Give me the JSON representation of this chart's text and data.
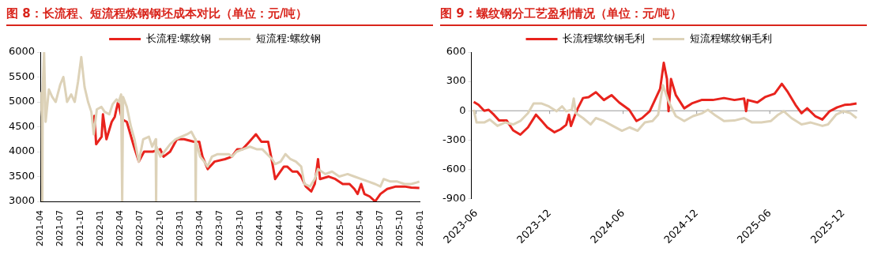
{
  "chart_data": [
    {
      "type": "line",
      "title": "图 8：长流程、短流程炼钢钢坯成本对比（单位：元/吨）",
      "legend": "top",
      "grid": false,
      "marker": "none",
      "line_style": "solid",
      "xlim": [
        "2021-04",
        "2026-01"
      ],
      "xticks": [
        "2021-04",
        "2021-07",
        "2021-10",
        "2022-01",
        "2022-04",
        "2022-07",
        "2022-10",
        "2023-01",
        "2023-04",
        "2023-07",
        "2023-10",
        "2024-01",
        "2024-04",
        "2024-07",
        "2024-10",
        "2025-01",
        "2025-04",
        "2025-07",
        "2025-10",
        "2026-01"
      ],
      "ylim": [
        3000,
        6000
      ],
      "yticks": [
        3000,
        3500,
        4000,
        4500,
        5000,
        5500,
        6000
      ],
      "series": [
        {
          "name": "长流程:螺纹钢",
          "color": "#e8231d",
          "x": [
            "2021-12-01",
            "2021-12-04",
            "2021-12-12",
            "2022-01-06",
            "2022-01-12",
            "2022-01-28",
            "2022-02-21",
            "2022-03-07",
            "2022-03-22",
            "2022-04-09",
            "2022-05-01",
            "2022-06-03",
            "2022-06-25",
            "2022-07-19",
            "2022-08-28",
            "2022-10-01",
            "2022-10-16",
            "2022-11-15",
            "2022-12-16",
            "2023-01-18",
            "2023-03-04",
            "2023-03-28",
            "2023-04-12",
            "2023-05-06",
            "2023-06-06",
            "2023-07-24",
            "2023-08-24",
            "2023-09-18",
            "2023-10-12",
            "2023-11-12",
            "2023-12-12",
            "2024-01-06",
            "2024-02-06",
            "2024-02-24",
            "2024-03-09",
            "2024-04-18",
            "2024-05-03",
            "2024-05-27",
            "2024-06-18",
            "2024-07-06",
            "2024-07-27",
            "2024-08-21",
            "2024-09-06",
            "2024-09-21",
            "2024-09-30",
            "2024-11-09",
            "2024-12-09",
            "2025-01-12",
            "2025-02-12",
            "2025-03-06",
            "2025-03-21",
            "2025-04-06",
            "2025-04-21",
            "2025-05-15",
            "2025-06-09",
            "2025-07-03",
            "2025-08-03",
            "2025-09-12",
            "2025-10-21",
            "2025-11-21",
            "2025-12-28"
          ],
          "values": [
            4400,
            4720,
            4150,
            4300,
            4750,
            4250,
            4600,
            4700,
            5000,
            4650,
            4600,
            4100,
            3800,
            4000,
            4000,
            4050,
            3900,
            4000,
            4250,
            4250,
            4200,
            4200,
            3900,
            3650,
            3800,
            3850,
            3900,
            4050,
            4050,
            4200,
            4350,
            4200,
            4200,
            3800,
            3450,
            3700,
            3700,
            3600,
            3600,
            3500,
            3300,
            3200,
            3350,
            3850,
            3450,
            3500,
            3450,
            3350,
            3350,
            3250,
            3150,
            3350,
            3150,
            3100,
            3000,
            3150,
            3250,
            3300,
            3300,
            3280,
            3270
          ]
        },
        {
          "name": "短流程:螺纹钢",
          "color": "#ddd2b8",
          "x": [
            "2021-04-01",
            "2021-04-08",
            "2021-04-10",
            "2021-04-12",
            "2021-04-18",
            "2021-04-25",
            "2021-05-10",
            "2021-05-25",
            "2021-06-10",
            "2021-07-01",
            "2021-07-15",
            "2021-08-01",
            "2021-08-20",
            "2021-09-05",
            "2021-09-20",
            "2021-10-05",
            "2021-10-20",
            "2021-11-05",
            "2021-11-20",
            "2021-12-01",
            "2021-12-15",
            "2022-01-05",
            "2022-01-20",
            "2022-02-10",
            "2022-02-25",
            "2022-03-15",
            "2022-03-25",
            "2022-04-05",
            "2022-04-10",
            "2022-04-14",
            "2022-05-01",
            "2022-05-20",
            "2022-06-05",
            "2022-06-25",
            "2022-07-15",
            "2022-08-10",
            "2022-08-25",
            "2022-09-10",
            "2022-09-12",
            "2022-09-14",
            "2022-10-01",
            "2022-10-20",
            "2022-11-15",
            "2022-12-10",
            "2023-01-05",
            "2023-02-01",
            "2023-02-20",
            "2023-03-10",
            "2023-03-12",
            "2023-03-14",
            "2023-04-01",
            "2023-04-20",
            "2023-05-05",
            "2023-05-25",
            "2023-06-20",
            "2023-07-15",
            "2023-08-10",
            "2023-08-25",
            "2023-09-15",
            "2023-10-15",
            "2023-11-15",
            "2023-12-15",
            "2024-01-10",
            "2024-02-24",
            "2024-03-09",
            "2024-04-03",
            "2024-04-25",
            "2024-05-18",
            "2024-06-12",
            "2024-07-06",
            "2024-07-21",
            "2024-08-15",
            "2024-09-06",
            "2024-09-21",
            "2024-10-24",
            "2024-11-24",
            "2024-12-27",
            "2025-02-03",
            "2025-03-06",
            "2025-04-06",
            "2025-05-09",
            "2025-06-09",
            "2025-07-03",
            "2025-07-18",
            "2025-08-18",
            "2025-09-18",
            "2025-10-21",
            "2025-11-21",
            "2025-12-15",
            "2025-12-28"
          ],
          "values": [
            5200,
            4700,
            3000,
            5300,
            6000,
            4600,
            5250,
            5100,
            5000,
            5350,
            5500,
            5000,
            5150,
            5000,
            5400,
            5900,
            5300,
            5000,
            4800,
            4350,
            4850,
            4900,
            4800,
            4750,
            4950,
            5050,
            5000,
            5150,
            3000,
            5100,
            4900,
            4500,
            4250,
            3800,
            4250,
            4300,
            4100,
            4250,
            3000,
            4100,
            3900,
            4000,
            4150,
            4250,
            4300,
            4350,
            4400,
            4250,
            3000,
            4200,
            3900,
            3800,
            3700,
            3900,
            3950,
            3950,
            3950,
            3900,
            4000,
            4050,
            4100,
            4050,
            4050,
            3850,
            3750,
            3800,
            3950,
            3850,
            3800,
            3700,
            3350,
            3300,
            3450,
            3650,
            3550,
            3600,
            3500,
            3550,
            3500,
            3450,
            3400,
            3350,
            3300,
            3450,
            3400,
            3400,
            3350,
            3350,
            3380,
            3400
          ]
        }
      ]
    },
    {
      "type": "line",
      "title": "图 9：螺纹钢分工艺盈利情况（单位：元/吨）",
      "legend": "top",
      "grid": false,
      "marker": "none",
      "line_style": "solid",
      "xlim": [
        "2023-05-20",
        "2026-01-05"
      ],
      "xticks": [
        "2023-06",
        "2023-12",
        "2024-06",
        "2024-12",
        "2025-06",
        "2025-12"
      ],
      "ylim": [
        -900,
        600
      ],
      "yticks": [
        -900,
        -600,
        -300,
        0,
        300,
        600
      ],
      "ref_lines": [
        {
          "axis": "y",
          "value": 0,
          "color": "#999999"
        }
      ],
      "series": [
        {
          "name": "长流程螺纹钢毛利",
          "color": "#e8231d",
          "x": [
            "2023-05-26",
            "2023-06-07",
            "2023-06-21",
            "2023-07-02",
            "2023-07-15",
            "2023-07-28",
            "2023-08-16",
            "2023-09-01",
            "2023-09-19",
            "2023-10-08",
            "2023-10-28",
            "2023-11-10",
            "2023-11-25",
            "2023-12-13",
            "2023-12-28",
            "2024-01-11",
            "2024-01-18",
            "2024-01-23",
            "2024-02-01",
            "2024-02-09",
            "2024-02-22",
            "2024-03-07",
            "2024-03-25",
            "2024-04-14",
            "2024-05-03",
            "2024-05-22",
            "2024-06-16",
            "2024-07-04",
            "2024-07-18",
            "2024-08-06",
            "2024-08-19",
            "2024-09-01",
            "2024-09-10",
            "2024-09-18",
            "2024-09-22",
            "2024-09-28",
            "2024-10-10",
            "2024-10-31",
            "2024-11-19",
            "2024-12-13",
            "2025-01-10",
            "2025-02-07",
            "2025-03-05",
            "2025-03-29",
            "2025-04-03",
            "2025-04-07",
            "2025-05-01",
            "2025-05-20",
            "2025-06-13",
            "2025-07-01",
            "2025-07-16",
            "2025-08-04",
            "2025-08-19",
            "2025-09-02",
            "2025-09-22",
            "2025-10-10",
            "2025-10-28",
            "2025-11-16",
            "2025-12-04",
            "2025-12-19",
            "2026-01-03"
          ],
          "values": [
            90,
            60,
            0,
            10,
            -40,
            -100,
            -100,
            -200,
            -245,
            -170,
            -40,
            -100,
            -170,
            -220,
            -190,
            -145,
            -40,
            -155,
            -55,
            25,
            130,
            140,
            190,
            110,
            160,
            85,
            10,
            -105,
            -75,
            -5,
            110,
            225,
            490,
            325,
            -5,
            325,
            160,
            25,
            75,
            110,
            110,
            130,
            110,
            125,
            -5,
            110,
            85,
            140,
            175,
            275,
            190,
            60,
            -25,
            25,
            -55,
            -90,
            -5,
            35,
            60,
            65,
            75
          ]
        },
        {
          "name": "短流程螺纹钢毛利",
          "color": "#ddd2b8",
          "x": [
            "2023-05-26",
            "2023-06-02",
            "2023-06-21",
            "2023-07-05",
            "2023-07-24",
            "2023-08-12",
            "2023-09-01",
            "2023-09-19",
            "2023-10-08",
            "2023-10-22",
            "2023-11-10",
            "2023-11-29",
            "2023-12-18",
            "2024-01-01",
            "2024-01-11",
            "2024-01-25",
            "2024-01-30",
            "2024-02-04",
            "2024-02-22",
            "2024-03-12",
            "2024-03-25",
            "2024-04-14",
            "2024-05-06",
            "2024-05-29",
            "2024-06-17",
            "2024-07-07",
            "2024-07-25",
            "2024-08-13",
            "2024-08-27",
            "2024-09-08",
            "2024-09-22",
            "2024-10-10",
            "2024-10-31",
            "2024-11-22",
            "2024-12-15",
            "2024-12-29",
            "2025-01-14",
            "2025-02-07",
            "2025-03-05",
            "2025-03-29",
            "2025-04-18",
            "2025-05-11",
            "2025-06-04",
            "2025-06-22",
            "2025-07-06",
            "2025-07-25",
            "2025-08-19",
            "2025-09-11",
            "2025-10-10",
            "2025-10-24",
            "2025-11-13",
            "2025-12-01",
            "2025-12-19",
            "2026-01-03"
          ],
          "values": [
            10,
            -120,
            -120,
            -90,
            -155,
            -120,
            -140,
            -105,
            -25,
            75,
            75,
            45,
            -5,
            45,
            -5,
            10,
            125,
            -25,
            -75,
            -140,
            -75,
            -105,
            -155,
            -205,
            -170,
            -205,
            -120,
            -105,
            -40,
            260,
            95,
            -55,
            -105,
            -55,
            -25,
            10,
            -40,
            -105,
            -100,
            -75,
            -120,
            -120,
            -105,
            -40,
            -5,
            -75,
            -140,
            -120,
            -155,
            -140,
            -40,
            -5,
            -25,
            -75
          ]
        }
      ]
    }
  ]
}
